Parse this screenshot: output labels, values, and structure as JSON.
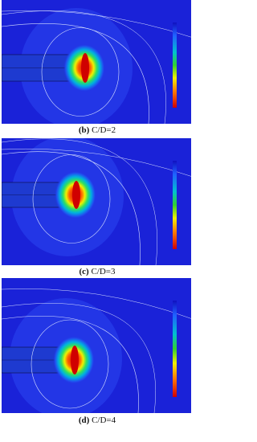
{
  "panels": [
    {
      "label": "(b)",
      "text": "C/D=2"
    },
    {
      "label": "(c)",
      "text": "C/D=3"
    },
    {
      "label": "(d)",
      "text": "C/D=4"
    }
  ]
}
